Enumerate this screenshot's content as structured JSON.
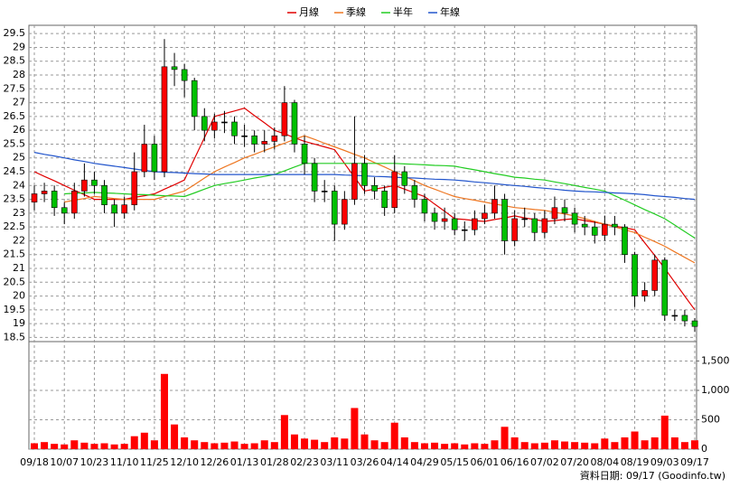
{
  "chart_data": {
    "type": "candlestick",
    "legend_position": "top",
    "grid": true,
    "source": "資料日期: 09/17 (Goodinfo.tw)",
    "up_color": "#ff0000",
    "down_color": "#00c000",
    "categories": [
      "09/18",
      null,
      null,
      "10/07",
      null,
      null,
      "10/23",
      null,
      null,
      "11/10",
      null,
      null,
      "11/25",
      null,
      null,
      "12/10",
      null,
      null,
      "12/26",
      null,
      null,
      "01/13",
      null,
      null,
      "01/28",
      null,
      null,
      "02/23",
      null,
      null,
      "03/11",
      null,
      null,
      "03/26",
      null,
      null,
      "04/14",
      null,
      null,
      "04/29",
      null,
      null,
      "05/15",
      null,
      null,
      "06/01",
      null,
      null,
      "06/16",
      null,
      null,
      "07/02",
      null,
      null,
      "07/20",
      null,
      null,
      "08/04",
      null,
      null,
      "08/19",
      null,
      null,
      "09/03",
      null,
      null,
      "09/17"
    ],
    "open": [
      23.4,
      23.7,
      23.8,
      23.2,
      23.0,
      23.8,
      24.2,
      24.0,
      23.3,
      23.0,
      23.3,
      24.5,
      25.5,
      24.5,
      28.3,
      28.2,
      27.8,
      26.5,
      26.0,
      26.3,
      26.3,
      25.8,
      25.8,
      25.5,
      25.6,
      25.8,
      27.0,
      25.5,
      24.8,
      23.8,
      23.8,
      22.6,
      23.5,
      24.8,
      24.0,
      23.8,
      23.2,
      24.5,
      24.0,
      23.5,
      23.0,
      22.7,
      22.8,
      22.4,
      22.4,
      22.8,
      23.0,
      23.5,
      22.0,
      22.8,
      22.8,
      22.3,
      22.8,
      23.2,
      23.0,
      22.6,
      22.5,
      22.2,
      22.6,
      22.5,
      21.5,
      20.0,
      20.2,
      21.3,
      19.3,
      19.3,
      19.1
    ],
    "high": [
      24.0,
      24.1,
      24.0,
      23.4,
      24.1,
      24.8,
      24.5,
      24.2,
      23.5,
      23.6,
      25.2,
      26.2,
      25.8,
      29.3,
      28.8,
      28.4,
      27.9,
      26.8,
      26.6,
      26.7,
      26.5,
      26.2,
      26.0,
      26.0,
      26.1,
      27.6,
      27.1,
      25.8,
      25.0,
      24.2,
      24.0,
      23.8,
      26.5,
      25.1,
      24.3,
      24.0,
      25.1,
      24.7,
      24.2,
      23.7,
      23.2,
      23.2,
      23.0,
      22.7,
      23.1,
      23.3,
      24.0,
      23.7,
      23.1,
      23.2,
      23.0,
      23.1,
      23.6,
      23.5,
      23.2,
      22.9,
      22.7,
      22.9,
      22.9,
      22.6,
      21.6,
      20.5,
      21.5,
      21.4,
      19.5,
      19.5,
      19.2
    ],
    "low": [
      23.1,
      23.4,
      22.9,
      22.6,
      22.8,
      23.6,
      23.7,
      23.0,
      22.5,
      22.8,
      23.1,
      24.3,
      24.2,
      24.3,
      27.6,
      27.2,
      26.0,
      25.6,
      25.7,
      25.9,
      25.5,
      25.4,
      25.2,
      25.2,
      25.3,
      25.6,
      25.2,
      24.4,
      23.4,
      23.4,
      22.0,
      22.4,
      23.3,
      23.7,
      23.5,
      22.9,
      23.0,
      23.7,
      23.2,
      22.7,
      22.4,
      22.4,
      22.2,
      22.0,
      22.2,
      22.6,
      22.8,
      21.5,
      21.8,
      22.5,
      22.0,
      22.1,
      22.6,
      22.7,
      22.3,
      22.2,
      21.9,
      22.0,
      22.2,
      21.2,
      19.6,
      19.8,
      20.0,
      19.1,
      19.1,
      18.9,
      18.7
    ],
    "close": [
      23.7,
      23.8,
      23.2,
      23.0,
      23.8,
      24.2,
      24.0,
      23.3,
      23.0,
      23.3,
      24.5,
      25.5,
      24.5,
      28.3,
      28.2,
      27.8,
      26.5,
      26.0,
      26.3,
      26.3,
      25.8,
      25.8,
      25.5,
      25.6,
      25.8,
      27.0,
      25.5,
      24.8,
      23.8,
      23.8,
      22.6,
      23.5,
      24.8,
      24.0,
      23.8,
      23.2,
      24.5,
      24.0,
      23.5,
      23.0,
      22.7,
      22.8,
      22.4,
      22.4,
      22.8,
      23.0,
      23.5,
      22.0,
      22.8,
      22.8,
      22.3,
      22.8,
      23.2,
      23.0,
      22.6,
      22.5,
      22.2,
      22.6,
      22.5,
      21.5,
      20.0,
      20.2,
      21.3,
      19.3,
      19.3,
      19.1,
      18.9
    ],
    "series": [
      {
        "name": "月線",
        "color": "#e00000",
        "values": [
          24.5,
          24.33,
          24.17,
          24.0,
          23.83,
          23.67,
          23.5,
          23.5,
          23.5,
          23.5,
          23.57,
          23.63,
          23.7,
          23.87,
          24.03,
          24.2,
          24.97,
          25.73,
          26.5,
          26.6,
          26.7,
          26.8,
          26.53,
          26.27,
          26.0,
          25.87,
          25.73,
          25.6,
          25.5,
          25.4,
          25.3,
          24.8,
          24.3,
          23.8,
          23.87,
          23.93,
          24.0,
          23.87,
          23.73,
          23.6,
          23.33,
          23.07,
          22.8,
          22.77,
          22.73,
          22.7,
          22.77,
          22.83,
          22.9,
          22.83,
          22.77,
          22.7,
          22.73,
          22.77,
          22.8,
          22.73,
          22.67,
          22.6,
          22.53,
          22.47,
          22.4,
          21.93,
          21.47,
          21.0,
          20.5,
          20.0,
          19.5
        ]
      },
      {
        "name": "季線",
        "color": "#ee7722",
        "values": [
          null,
          null,
          null,
          23.4,
          23.47,
          23.53,
          23.6,
          23.57,
          23.53,
          23.5,
          23.5,
          23.5,
          23.5,
          23.6,
          23.7,
          23.8,
          24.03,
          24.27,
          24.5,
          24.67,
          24.83,
          25.0,
          25.13,
          25.27,
          25.4,
          25.53,
          25.67,
          25.8,
          25.67,
          25.53,
          25.4,
          25.27,
          25.13,
          25.0,
          24.83,
          24.67,
          24.5,
          24.33,
          24.17,
          24.0,
          23.87,
          23.73,
          23.6,
          23.53,
          23.47,
          23.4,
          23.33,
          23.27,
          23.2,
          23.17,
          23.13,
          23.1,
          23.03,
          22.97,
          22.9,
          22.8,
          22.7,
          22.6,
          22.5,
          22.4,
          22.3,
          22.13,
          21.97,
          21.8,
          21.6,
          21.4,
          21.2
        ]
      },
      {
        "name": "半年",
        "color": "#22cc22",
        "values": [
          null,
          null,
          null,
          23.7,
          23.72,
          23.73,
          23.75,
          23.73,
          23.72,
          23.7,
          23.68,
          23.67,
          23.65,
          23.63,
          23.62,
          23.6,
          23.73,
          23.87,
          24.0,
          24.07,
          24.13,
          24.2,
          24.27,
          24.33,
          24.4,
          24.53,
          24.67,
          24.8,
          24.8,
          24.8,
          24.8,
          24.8,
          24.8,
          24.8,
          24.8,
          24.8,
          24.8,
          24.78,
          24.77,
          24.75,
          24.73,
          24.72,
          24.7,
          24.63,
          24.57,
          24.5,
          24.43,
          24.37,
          24.3,
          24.27,
          24.23,
          24.2,
          24.13,
          24.07,
          24.0,
          23.93,
          23.87,
          23.8,
          23.63,
          23.47,
          23.3,
          23.13,
          22.97,
          22.8,
          22.57,
          22.33,
          22.1
        ]
      },
      {
        "name": "年線",
        "color": "#2255cc",
        "values": [
          25.2,
          25.13,
          25.07,
          25.0,
          24.93,
          24.87,
          24.8,
          24.75,
          24.7,
          24.65,
          24.6,
          24.55,
          24.5,
          24.48,
          24.47,
          24.45,
          24.43,
          24.42,
          24.4,
          24.4,
          24.4,
          24.4,
          24.4,
          24.4,
          24.4,
          24.4,
          24.4,
          24.4,
          24.4,
          24.4,
          24.4,
          24.38,
          24.37,
          24.35,
          24.33,
          24.32,
          24.3,
          24.28,
          24.27,
          24.25,
          24.23,
          24.22,
          24.2,
          24.17,
          24.13,
          24.1,
          24.07,
          24.03,
          24.0,
          23.97,
          23.93,
          23.9,
          23.87,
          23.83,
          23.8,
          23.78,
          23.77,
          23.75,
          23.73,
          23.72,
          23.7,
          23.67,
          23.63,
          23.6,
          23.57,
          23.53,
          23.5
        ]
      }
    ],
    "ylim": [
      18.35,
      29.8
    ],
    "yticks": [
      18.5,
      19,
      19.5,
      20,
      20.5,
      21,
      21.5,
      22,
      22.5,
      23,
      23.5,
      24,
      24.5,
      25,
      25.5,
      26,
      26.5,
      27,
      27.5,
      28,
      28.5,
      29,
      29.5
    ],
    "volume": {
      "type": "bar",
      "color": "#ff0000",
      "values": [
        100,
        120,
        90,
        80,
        150,
        110,
        90,
        100,
        80,
        90,
        220,
        280,
        150,
        1280,
        420,
        200,
        150,
        120,
        100,
        110,
        130,
        90,
        100,
        150,
        120,
        580,
        250,
        180,
        160,
        120,
        200,
        180,
        700,
        250,
        150,
        120,
        450,
        200,
        120,
        100,
        110,
        90,
        100,
        80,
        100,
        90,
        150,
        380,
        200,
        120,
        100,
        110,
        150,
        130,
        120,
        110,
        100,
        180,
        120,
        200,
        300,
        150,
        200,
        570,
        200,
        120,
        150
      ],
      "ylim": [
        0,
        1830
      ],
      "yticks": [
        0,
        500,
        {
          "value": 1000,
          "label": "1,000"
        },
        {
          "value": 1500,
          "label": "1,500"
        }
      ]
    }
  }
}
